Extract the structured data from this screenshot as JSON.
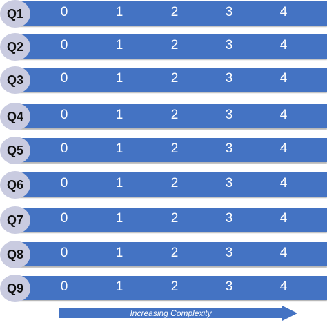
{
  "rows": [
    {
      "label": "Q1",
      "scores": [
        "0",
        "1",
        "2",
        "3",
        "4"
      ]
    },
    {
      "label": "Q2",
      "scores": [
        "0",
        "1",
        "2",
        "3",
        "4"
      ]
    },
    {
      "label": "Q3",
      "scores": [
        "0",
        "1",
        "2",
        "3",
        "4"
      ]
    },
    {
      "label": "Q4",
      "scores": [
        "0",
        "1",
        "2",
        "3",
        "4"
      ]
    },
    {
      "label": "Q5",
      "scores": [
        "0",
        "1",
        "2",
        "3",
        "4"
      ]
    },
    {
      "label": "Q6",
      "scores": [
        "0",
        "1",
        "2",
        "3",
        "4"
      ]
    },
    {
      "label": "Q7",
      "scores": [
        "0",
        "1",
        "2",
        "3",
        "4"
      ]
    },
    {
      "label": "Q8",
      "scores": [
        "0",
        "1",
        "2",
        "3",
        "4"
      ]
    },
    {
      "label": "Q9",
      "scores": [
        "0",
        "1",
        "2",
        "3",
        "4"
      ]
    }
  ],
  "arrow": {
    "label": "Increasing Complexity"
  },
  "colors": {
    "bar": "#4473c3",
    "circle": "#c9cbe0",
    "arrow": "#4473c3"
  }
}
